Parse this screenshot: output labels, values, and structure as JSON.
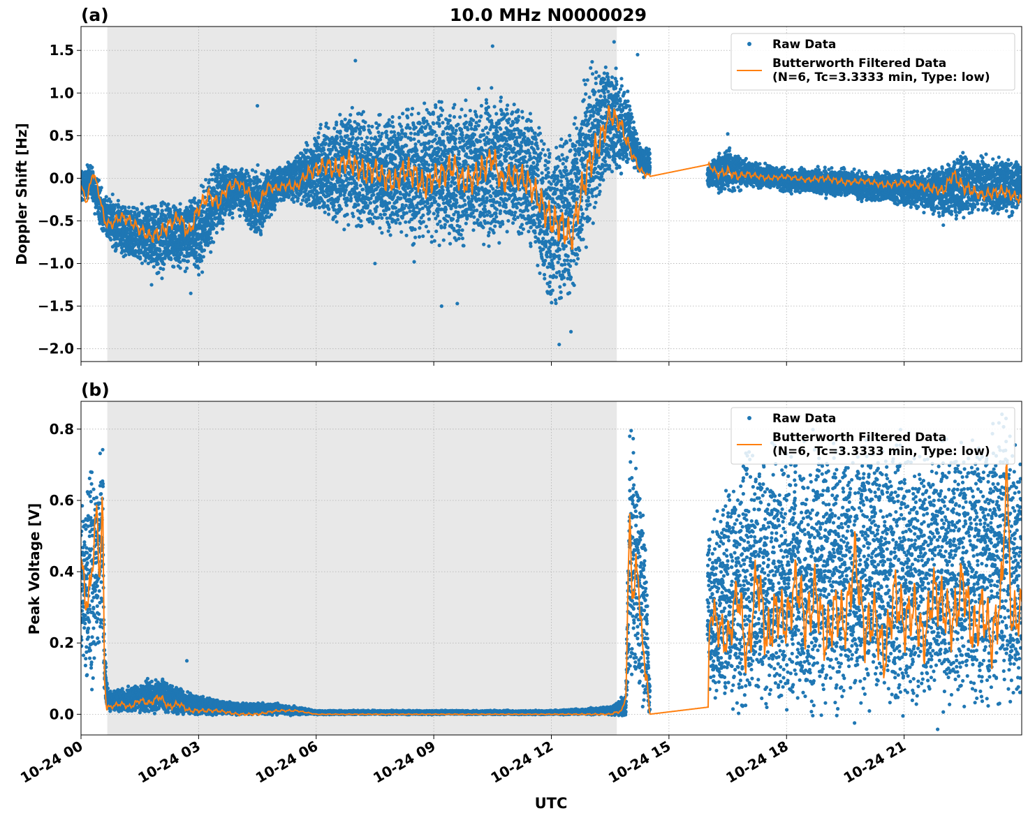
{
  "chart_data": [
    {
      "type": "scatter",
      "panel_label": "(a)",
      "title": "10.0 MHz N0000029",
      "xlabel": "",
      "ylabel": "Doppler Shift [Hz]",
      "xlim_hours": [
        0,
        24
      ],
      "ylim": [
        -2.15,
        1.78
      ],
      "yticks": [
        -2.0,
        -1.5,
        -1.0,
        -0.5,
        0.0,
        0.5,
        1.0,
        1.5
      ],
      "ytick_labels": [
        "−2.0",
        "−1.5",
        "−1.0",
        "−0.5",
        "0.0",
        "0.5",
        "1.0",
        "1.5"
      ],
      "xticks_hours": [
        0,
        3,
        6,
        9,
        12,
        15,
        18,
        21
      ],
      "grid": true,
      "legend_position": "top-right",
      "shaded_region_hours": [
        0.67,
        13.67
      ],
      "gap_hours": [
        14.5,
        16.0
      ],
      "series": [
        {
          "name": "Raw Data",
          "kind": "points",
          "color": "#1f77b4",
          "envelope_x": [
            0,
            0.3,
            0.6,
            1.0,
            1.5,
            2.0,
            2.5,
            3.0,
            3.5,
            4.0,
            4.5,
            5.0,
            5.5,
            6.0,
            6.5,
            7.0,
            7.5,
            8.0,
            8.5,
            9.0,
            9.5,
            10.0,
            10.5,
            11.0,
            11.5,
            12.0,
            12.5,
            13.0,
            13.5,
            14.0,
            14.25,
            14.5,
            16.0,
            16.5,
            17.0,
            17.5,
            18.0,
            18.5,
            19.0,
            19.5,
            20.0,
            20.5,
            21.0,
            21.5,
            22.0,
            22.5,
            23.0,
            23.5,
            24.0
          ],
          "envelope_low": [
            -0.25,
            -0.3,
            -0.7,
            -0.85,
            -0.95,
            -1.1,
            -1.0,
            -1.1,
            -0.6,
            -0.35,
            -0.7,
            -0.3,
            -0.25,
            -0.35,
            -0.45,
            -0.5,
            -0.55,
            -0.6,
            -0.65,
            -0.6,
            -0.7,
            -0.7,
            -0.6,
            -0.5,
            -0.8,
            -1.5,
            -1.3,
            -0.5,
            0.1,
            0.2,
            0.05,
            0.05,
            -0.1,
            -0.15,
            -0.1,
            -0.1,
            -0.15,
            -0.15,
            -0.2,
            -0.2,
            -0.25,
            -0.25,
            -0.3,
            -0.35,
            -0.4,
            -0.4,
            -0.35,
            -0.4,
            -0.35
          ],
          "envelope_high": [
            0.1,
            0.15,
            -0.2,
            -0.3,
            -0.35,
            -0.3,
            -0.3,
            -0.2,
            0.15,
            0.1,
            0.05,
            0.1,
            0.25,
            0.5,
            0.7,
            0.75,
            0.7,
            0.7,
            0.75,
            0.85,
            0.8,
            0.8,
            0.9,
            0.8,
            0.7,
            0.3,
            0.6,
            1.3,
            1.35,
            0.9,
            0.35,
            0.35,
            0.15,
            0.35,
            0.2,
            0.15,
            0.1,
            0.1,
            0.1,
            0.1,
            0.05,
            0.05,
            0.05,
            0.05,
            0.15,
            0.25,
            0.2,
            0.2,
            0.15
          ],
          "outliers": [
            [
              4.5,
              0.85
            ],
            [
              7.0,
              1.38
            ],
            [
              10.5,
              1.55
            ],
            [
              13.6,
              1.6
            ],
            [
              14.2,
              1.45
            ],
            [
              12.2,
              -1.95
            ],
            [
              12.5,
              -1.8
            ],
            [
              9.2,
              -1.5
            ],
            [
              9.6,
              -1.47
            ],
            [
              2.8,
              -1.35
            ],
            [
              1.8,
              -1.25
            ],
            [
              7.5,
              -1.0
            ],
            [
              8.5,
              -0.98
            ],
            [
              16.5,
              0.52
            ],
            [
              22.5,
              0.3
            ],
            [
              22.0,
              -0.55
            ]
          ]
        },
        {
          "name": "Butterworth Filtered Data\n(N=6, Tc=3.3333 min, Type: low)",
          "kind": "line",
          "color": "#ff7f0e",
          "x": [
            0,
            0.15,
            0.3,
            0.45,
            0.6,
            0.75,
            1.0,
            1.25,
            1.5,
            1.75,
            2.0,
            2.25,
            2.5,
            2.75,
            3.0,
            3.25,
            3.5,
            3.75,
            4.0,
            4.25,
            4.5,
            4.75,
            5.0,
            5.25,
            5.5,
            5.75,
            6.0,
            6.25,
            6.5,
            6.75,
            7.0,
            7.25,
            7.5,
            7.75,
            8.0,
            8.25,
            8.5,
            8.75,
            9.0,
            9.25,
            9.5,
            9.75,
            10.0,
            10.25,
            10.5,
            10.75,
            11.0,
            11.25,
            11.5,
            11.75,
            12.0,
            12.25,
            12.5,
            12.75,
            13.0,
            13.25,
            13.5,
            13.75,
            14.0,
            14.25,
            14.5,
            16.0,
            16.25,
            16.5,
            16.75,
            17.0,
            17.5,
            18.0,
            18.5,
            19.0,
            19.5,
            20.0,
            20.5,
            21.0,
            21.5,
            22.0,
            22.25,
            22.5,
            23.0,
            23.5,
            24.0
          ],
          "y": [
            -0.1,
            -0.28,
            0.08,
            -0.15,
            -0.5,
            -0.55,
            -0.45,
            -0.5,
            -0.6,
            -0.68,
            -0.65,
            -0.55,
            -0.45,
            -0.65,
            -0.35,
            -0.2,
            -0.3,
            -0.1,
            -0.05,
            -0.15,
            -0.35,
            -0.1,
            -0.12,
            -0.08,
            -0.1,
            0.05,
            0.1,
            0.15,
            0.1,
            0.2,
            0.15,
            0.05,
            0.1,
            0.0,
            -0.05,
            0.1,
            0.05,
            -0.1,
            0.0,
            0.05,
            0.15,
            -0.05,
            0.0,
            0.1,
            0.25,
            -0.05,
            0.05,
            0.0,
            -0.1,
            -0.3,
            -0.5,
            -0.55,
            -0.7,
            -0.2,
            0.2,
            0.45,
            0.75,
            0.65,
            0.35,
            0.1,
            0.02,
            0.16,
            0.05,
            0.08,
            0.02,
            0.05,
            0.0,
            0.02,
            -0.02,
            0.0,
            -0.05,
            -0.03,
            -0.08,
            -0.05,
            -0.1,
            -0.15,
            0.05,
            -0.1,
            -0.2,
            -0.15,
            -0.25
          ]
        }
      ]
    },
    {
      "type": "scatter",
      "panel_label": "(b)",
      "title": "",
      "xlabel": "UTC",
      "ylabel": "Peak Voltage [V]",
      "xlim_hours": [
        0,
        24
      ],
      "ylim": [
        -0.058,
        0.878
      ],
      "yticks": [
        0.0,
        0.2,
        0.4,
        0.6,
        0.8
      ],
      "ytick_labels": [
        "0.0",
        "0.2",
        "0.4",
        "0.6",
        "0.8"
      ],
      "xticks_hours": [
        0,
        3,
        6,
        9,
        12,
        15,
        18,
        21
      ],
      "xtick_labels": [
        "10-24 00",
        "10-24 03",
        "10-24 06",
        "10-24 09",
        "10-24 12",
        "10-24 15",
        "10-24 18",
        "10-24 21"
      ],
      "grid": true,
      "legend_position": "top-right",
      "shaded_region_hours": [
        0.67,
        13.67
      ],
      "gap_hours": [
        14.5,
        16.0
      ],
      "series": [
        {
          "name": "Raw Data",
          "kind": "points",
          "color": "#1f77b4",
          "envelope_x": [
            0,
            0.2,
            0.4,
            0.55,
            0.6,
            0.7,
            1.0,
            1.5,
            2.0,
            2.5,
            3.0,
            3.5,
            4.0,
            5.0,
            6.0,
            8.0,
            10.0,
            12.0,
            13.5,
            13.9,
            14.0,
            14.2,
            14.4,
            14.5,
            16.0,
            16.5,
            17.0,
            17.5,
            18.0,
            18.5,
            19.0,
            19.5,
            20.0,
            20.5,
            21.0,
            21.5,
            22.0,
            22.5,
            23.0,
            23.5,
            24.0
          ],
          "envelope_low": [
            0.15,
            0.1,
            0.15,
            0.3,
            0.05,
            0.01,
            0.01,
            0.01,
            0.01,
            0.0,
            0.0,
            0.0,
            0.0,
            0.0,
            0.0,
            0.0,
            0.0,
            0.0,
            0.0,
            0.0,
            0.1,
            0.1,
            0.05,
            0.0,
            0.1,
            0.05,
            0.02,
            0.03,
            0.05,
            0.03,
            0.05,
            0.06,
            0.05,
            0.05,
            0.04,
            0.06,
            0.05,
            0.05,
            0.06,
            0.08,
            0.05
          ],
          "envelope_high": [
            0.55,
            0.7,
            0.6,
            0.79,
            0.2,
            0.06,
            0.07,
            0.08,
            0.1,
            0.07,
            0.05,
            0.04,
            0.03,
            0.03,
            0.01,
            0.01,
            0.01,
            0.01,
            0.02,
            0.05,
            0.78,
            0.7,
            0.5,
            0.1,
            0.5,
            0.6,
            0.72,
            0.7,
            0.7,
            0.75,
            0.72,
            0.7,
            0.72,
            0.7,
            0.75,
            0.7,
            0.72,
            0.74,
            0.75,
            0.8,
            0.7
          ],
          "outliers": [
            [
              2.7,
              0.15
            ],
            [
              1.7,
              0.1
            ],
            [
              23.6,
              0.83
            ],
            [
              23.7,
              0.78
            ],
            [
              20.0,
              0.75
            ],
            [
              19.2,
              0.76
            ],
            [
              14.0,
              0.78
            ]
          ]
        },
        {
          "name": "Butterworth Filtered Data\n(N=6, Tc=3.3333 min, Type: low)",
          "kind": "line",
          "color": "#ff7f0e",
          "x": [
            0,
            0.1,
            0.2,
            0.3,
            0.4,
            0.48,
            0.55,
            0.6,
            0.65,
            0.75,
            1.0,
            1.25,
            1.5,
            1.75,
            2.0,
            2.25,
            2.5,
            2.75,
            3.0,
            3.5,
            4.0,
            4.5,
            5.0,
            5.5,
            6.0,
            7.0,
            8.0,
            9.0,
            10.0,
            11.0,
            12.0,
            13.0,
            13.5,
            13.8,
            13.9,
            14.0,
            14.1,
            14.2,
            14.3,
            14.4,
            14.5,
            16.0,
            16.05,
            16.25,
            16.5,
            16.75,
            17.0,
            17.25,
            17.5,
            17.75,
            18.0,
            18.25,
            18.5,
            18.75,
            19.0,
            19.25,
            19.5,
            19.75,
            20.0,
            20.25,
            20.5,
            20.75,
            21.0,
            21.25,
            21.5,
            21.75,
            22.0,
            22.25,
            22.5,
            22.75,
            23.0,
            23.25,
            23.5,
            23.6,
            23.75,
            24.0
          ],
          "y": [
            0.42,
            0.35,
            0.3,
            0.45,
            0.56,
            0.4,
            0.6,
            0.1,
            0.02,
            0.02,
            0.03,
            0.02,
            0.04,
            0.03,
            0.05,
            0.02,
            0.03,
            0.01,
            0.01,
            0.01,
            0.0,
            0.0,
            0.01,
            0.01,
            0.0,
            0.0,
            0.0,
            0.0,
            0.0,
            0.0,
            0.0,
            0.0,
            0.0,
            0.01,
            0.05,
            0.55,
            0.3,
            0.45,
            0.2,
            0.15,
            0.0,
            0.02,
            0.3,
            0.25,
            0.2,
            0.35,
            0.15,
            0.4,
            0.2,
            0.3,
            0.25,
            0.38,
            0.25,
            0.35,
            0.2,
            0.3,
            0.25,
            0.45,
            0.22,
            0.28,
            0.15,
            0.35,
            0.25,
            0.3,
            0.2,
            0.35,
            0.3,
            0.25,
            0.38,
            0.22,
            0.3,
            0.2,
            0.35,
            0.7,
            0.25,
            0.3
          ]
        }
      ]
    }
  ]
}
